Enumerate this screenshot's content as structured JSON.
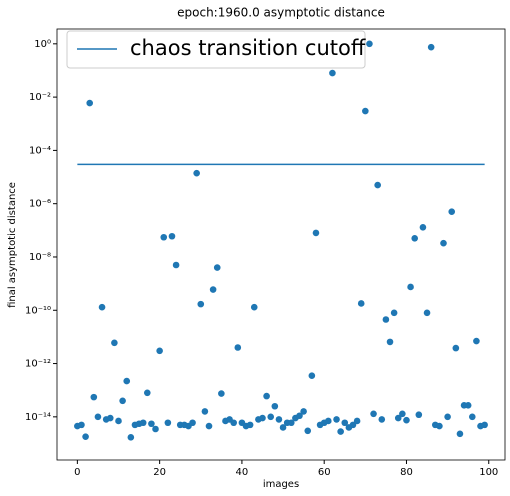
{
  "chart_data": {
    "type": "scatter",
    "title": "epoch:1960.0 asymptotic distance",
    "xlabel": "images",
    "ylabel": "final asymptotic distance",
    "yscale": "log",
    "legend": "upper left",
    "xlim": [
      -4.95,
      103.95
    ],
    "xticks": [
      0,
      20,
      40,
      60,
      80,
      100
    ],
    "ylim": [
      2.4e-16,
      3.6
    ],
    "yticks": [
      {
        "value": 1,
        "label": "10⁰"
      },
      {
        "value": 0.01,
        "label": "10⁻²"
      },
      {
        "value": 0.0001,
        "label": "10⁻⁴"
      },
      {
        "value": 1e-06,
        "label": "10⁻⁶"
      },
      {
        "value": 1e-08,
        "label": "10⁻⁸"
      },
      {
        "value": 1e-10,
        "label": "10⁻¹⁰"
      },
      {
        "value": 1e-12,
        "label": "10⁻¹²"
      },
      {
        "value": 1e-14,
        "label": "10⁻¹⁴"
      }
    ],
    "series": [
      {
        "name": "chaos transition cutoff",
        "type": "line",
        "color": "#1f77b4",
        "x": [
          0,
          99
        ],
        "values": [
          3e-05,
          3e-05
        ]
      },
      {
        "type": "scatter",
        "color": "#1f77b4",
        "x": [
          0,
          1,
          2,
          3,
          4,
          5,
          6,
          7,
          8,
          9,
          10,
          11,
          12,
          13,
          14,
          15,
          16,
          17,
          18,
          19,
          20,
          21,
          22,
          23,
          24,
          25,
          26,
          27,
          28,
          29,
          30,
          31,
          32,
          33,
          34,
          35,
          36,
          37,
          38,
          39,
          40,
          41,
          42,
          43,
          44,
          45,
          46,
          47,
          48,
          49,
          50,
          51,
          52,
          53,
          54,
          55,
          56,
          57,
          58,
          59,
          60,
          61,
          62,
          63,
          64,
          65,
          66,
          67,
          68,
          69,
          70,
          71,
          72,
          73,
          74,
          75,
          76,
          77,
          78,
          79,
          80,
          81,
          82,
          83,
          84,
          85,
          86,
          87,
          88,
          89,
          90,
          91,
          92,
          93,
          94,
          95,
          96,
          97,
          98,
          99
        ],
        "values": [
          4.5e-15,
          5e-15,
          1.8e-15,
          0.006,
          5.5e-14,
          1e-14,
          1.3e-10,
          8e-15,
          9e-15,
          6e-12,
          7e-15,
          4e-14,
          2.2e-13,
          1.7e-15,
          5e-15,
          5.5e-15,
          6e-15,
          8e-14,
          5.5e-15,
          3.5e-15,
          3e-12,
          5.5e-08,
          6e-15,
          6e-08,
          5e-09,
          5e-15,
          5e-15,
          4.5e-15,
          6e-15,
          1.4e-05,
          1.7e-10,
          1.6e-14,
          4.5e-15,
          6e-10,
          4e-09,
          7.5e-14,
          7e-15,
          8e-15,
          6e-15,
          4e-12,
          6e-15,
          4.5e-15,
          5e-15,
          1.3e-10,
          8e-15,
          9e-15,
          6e-14,
          1e-14,
          2.5e-14,
          8e-15,
          4e-15,
          6e-15,
          6e-15,
          9e-15,
          1.1e-14,
          1.6e-14,
          3e-15,
          3.5e-13,
          8e-08,
          5e-15,
          6e-15,
          7e-15,
          0.08,
          8e-15,
          2.8e-15,
          6e-15,
          4e-15,
          5e-15,
          7e-15,
          1.8e-10,
          0.003,
          1,
          1.3e-14,
          5e-06,
          8e-15,
          4.5e-11,
          6.5e-12,
          8e-11,
          9e-15,
          1.3e-14,
          7.5e-15,
          7.5e-10,
          5e-08,
          1.2e-14,
          1.3e-07,
          8e-11,
          0.75,
          5e-15,
          4.5e-15,
          3.3e-08,
          1e-14,
          5e-07,
          3.8e-12,
          2.3e-15,
          2.7e-14,
          2.7e-14,
          1e-14,
          7e-12,
          4.5e-15,
          5e-15
        ]
      }
    ]
  }
}
